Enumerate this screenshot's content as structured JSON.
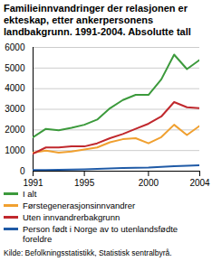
{
  "chart_data": {
    "type": "line",
    "title": "Familieinnvandringer der relasjonen er ekteskap, etter ankerpersonens landbakgrunn. 1991-2004. Absolutte tall",
    "x": [
      1991,
      1992,
      1993,
      1994,
      1995,
      1996,
      1997,
      1998,
      1999,
      2000,
      2001,
      2002,
      2003,
      2004
    ],
    "xlim": [
      1991,
      2004
    ],
    "xticks": [
      1991,
      1995,
      2000,
      2004
    ],
    "ylim": [
      0,
      6000
    ],
    "yticks": [
      0,
      1000,
      2000,
      3000,
      4000,
      5000,
      6000
    ],
    "grid": true,
    "legend": "bottom",
    "series": [
      {
        "name": "I alt",
        "color": "#3c9a3c",
        "values": [
          1650,
          2050,
          1980,
          2100,
          2250,
          2500,
          3050,
          3450,
          3700,
          3700,
          4450,
          5650,
          4950,
          5400
        ]
      },
      {
        "name": "Førstegenerasjonsinnvandrer",
        "color": "#f0a030",
        "values": [
          900,
          1000,
          900,
          950,
          1050,
          1150,
          1400,
          1550,
          1600,
          1350,
          1650,
          2250,
          1750,
          2200
        ]
      },
      {
        "name": "Uten innvandrerbakgrunn",
        "color": "#c0282d",
        "values": [
          850,
          1150,
          1150,
          1200,
          1200,
          1350,
          1600,
          1800,
          2050,
          2300,
          2650,
          3350,
          3100,
          3050
        ]
      },
      {
        "name": "Person født i Norge av to utenlandsfødte foreldre",
        "color": "#1f5aa6",
        "values": [
          50,
          60,
          70,
          80,
          90,
          110,
          130,
          150,
          160,
          170,
          210,
          240,
          260,
          280
        ]
      }
    ],
    "source": "Kilde: Befolkningsstatistikk, Statistisk sentralbyrå."
  }
}
